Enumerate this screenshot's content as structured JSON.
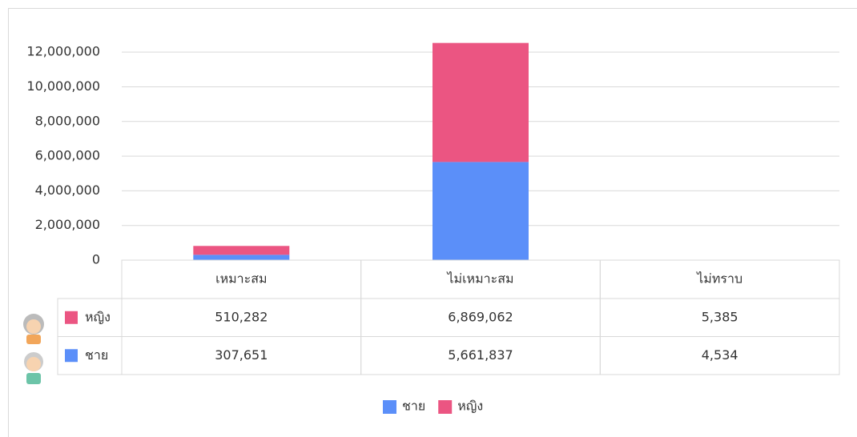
{
  "chart_data": {
    "type": "bar",
    "stacked": true,
    "categories": [
      "เหมาะสม",
      "ไม่เหมาะสม",
      "ไม่ทราบ"
    ],
    "series": [
      {
        "name": "ชาย",
        "color": "#5b8ff9",
        "values": [
          307651,
          5661837,
          4534
        ],
        "value_labels": [
          "307,651",
          "5,661,837",
          "4,534"
        ]
      },
      {
        "name": "หญิง",
        "color": "#eb5582",
        "values": [
          510282,
          6869062,
          5385
        ],
        "value_labels": [
          "510,282",
          "6,869,062",
          "5,385"
        ]
      }
    ],
    "ylim": [
      0,
      13000000
    ],
    "yticks": [
      0,
      {
        "value": 2000000,
        "label": "2,000,000"
      },
      {
        "value": 4000000,
        "label": "4,000,000"
      },
      {
        "value": 6000000,
        "label": "6,000,000"
      },
      {
        "value": 8000000,
        "label": "8,000,000"
      },
      {
        "value": 10000000,
        "label": "10,000,000"
      },
      {
        "value": 12000000,
        "label": "12,000,000"
      }
    ],
    "grid": true,
    "legend": "bottom",
    "data_table": true
  }
}
